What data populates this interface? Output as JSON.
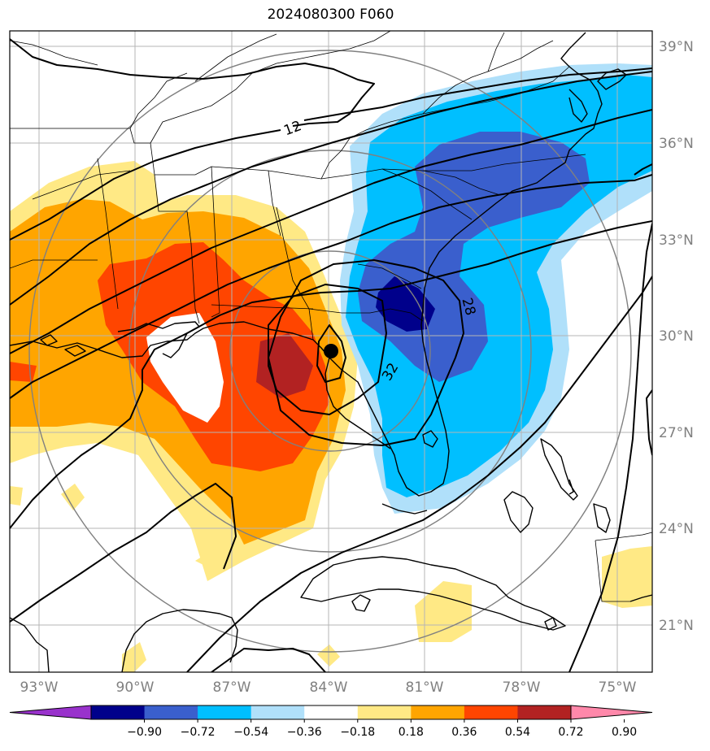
{
  "title": "2024080300 F060",
  "map": {
    "lon_ticks": [
      "93°W",
      "90°W",
      "87°W",
      "84°W",
      "81°W",
      "78°W",
      "75°W"
    ],
    "lat_ticks": [
      "39°N",
      "36°N",
      "33°N",
      "30°N",
      "27°N",
      "24°N",
      "21°N"
    ],
    "contour_labels": [
      "12",
      "28",
      "32"
    ],
    "storm_center": {
      "lat": 29.5,
      "lon": -83.9
    },
    "field_colors": {
      "pos_018_036": "#ffe985",
      "pos_036_054": "#ffa500",
      "pos_054_072": "#ff4500",
      "pos_072_090": "#b22222",
      "pos_gt_090": "#ff88aa",
      "neg_018_036": "#b0e0fa",
      "neg_036_054": "#00bfff",
      "neg_054_072": "#3a5fcd",
      "neg_072_090": "#00008b",
      "neg_lt_090": "#9932cc"
    }
  },
  "colorbar": {
    "labels": [
      "−0.90",
      "−0.72",
      "−0.54",
      "−0.36",
      "−0.18",
      "0.18",
      "0.36",
      "0.54",
      "0.72",
      "0.90"
    ],
    "colors": [
      "#9932cc",
      "#00008b",
      "#3a5fcd",
      "#00bfff",
      "#b0e0fa",
      "#ffffff",
      "#ffe985",
      "#ffa500",
      "#ff4500",
      "#b22222",
      "#ff88aa"
    ]
  }
}
